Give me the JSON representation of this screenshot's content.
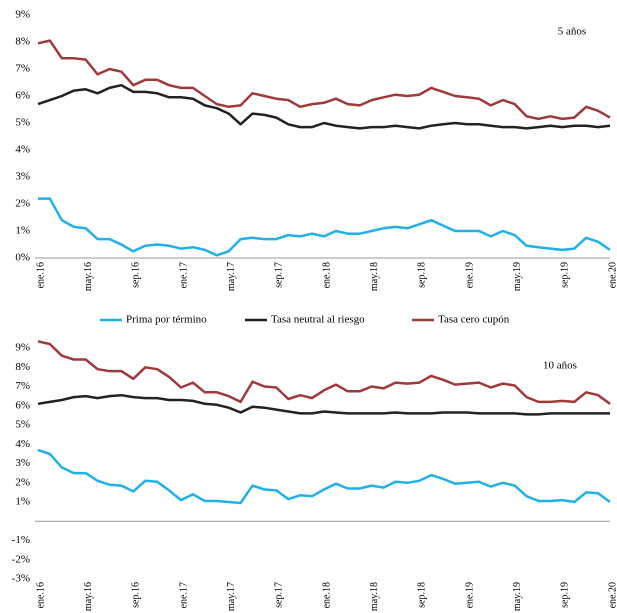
{
  "chart_data": [
    {
      "type": "line",
      "annotation": "5 años",
      "categories": [
        "ene.16",
        null,
        null,
        null,
        "may.16",
        null,
        null,
        null,
        "sep.16",
        null,
        null,
        null,
        "ene.17",
        null,
        null,
        null,
        "may.17",
        null,
        null,
        null,
        "sep.17",
        null,
        null,
        null,
        "ene.18",
        null,
        null,
        null,
        "may.18",
        null,
        null,
        null,
        "sep.18",
        null,
        null,
        null,
        "ene.19",
        null,
        null,
        null,
        "may.19",
        null,
        null,
        null,
        "sep.19",
        null,
        null,
        null,
        "ene.20"
      ],
      "ylim": [
        0,
        9
      ],
      "yticks": [
        {
          "value": 0,
          "label": "0%"
        },
        {
          "value": 1,
          "label": "1%"
        },
        {
          "value": 2,
          "label": "2%"
        },
        {
          "value": 3,
          "label": "3%"
        },
        {
          "value": 4,
          "label": "4%"
        },
        {
          "value": 5,
          "label": "5%"
        },
        {
          "value": 6,
          "label": "6%"
        },
        {
          "value": 7,
          "label": "7%"
        },
        {
          "value": 8,
          "label": "8%"
        },
        {
          "value": 9,
          "label": "9%"
        }
      ],
      "grid": false,
      "series": [
        {
          "name": "Prima por término",
          "color": "#1fb1e8",
          "values": [
            2.2,
            2.2,
            1.4,
            1.15,
            1.1,
            0.7,
            0.7,
            0.5,
            0.25,
            0.45,
            0.5,
            0.45,
            0.35,
            0.4,
            0.3,
            0.1,
            0.25,
            0.7,
            0.75,
            0.7,
            0.7,
            0.85,
            0.8,
            0.9,
            0.8,
            1.0,
            0.9,
            0.9,
            1.0,
            1.1,
            1.15,
            1.1,
            1.25,
            1.4,
            1.2,
            1.0,
            1.0,
            1.0,
            0.8,
            1.0,
            0.85,
            0.45,
            0.4,
            0.35,
            0.3,
            0.35,
            0.75,
            0.6,
            0.3
          ]
        },
        {
          "name": "Tasa neutral al riesgo",
          "color": "#222222",
          "values": [
            5.7,
            5.85,
            6.0,
            6.2,
            6.25,
            6.1,
            6.3,
            6.4,
            6.15,
            6.15,
            6.1,
            5.95,
            5.95,
            5.9,
            5.65,
            5.55,
            5.35,
            4.95,
            5.35,
            5.3,
            5.2,
            4.95,
            4.85,
            4.85,
            5.0,
            4.9,
            4.85,
            4.8,
            4.85,
            4.85,
            4.9,
            4.85,
            4.8,
            4.9,
            4.95,
            5.0,
            4.95,
            4.95,
            4.9,
            4.85,
            4.85,
            4.8,
            4.85,
            4.9,
            4.85,
            4.9,
            4.9,
            4.85,
            4.9
          ]
        },
        {
          "name": "Tasa cero cupón",
          "color": "#a0393b",
          "values": [
            7.95,
            8.05,
            7.4,
            7.4,
            7.35,
            6.8,
            7.0,
            6.9,
            6.4,
            6.6,
            6.6,
            6.4,
            6.3,
            6.3,
            6.0,
            5.7,
            5.6,
            5.65,
            6.1,
            6.0,
            5.9,
            5.85,
            5.6,
            5.7,
            5.75,
            5.9,
            5.7,
            5.65,
            5.85,
            5.95,
            6.05,
            6.0,
            6.05,
            6.3,
            6.15,
            6.0,
            5.95,
            5.9,
            5.65,
            5.85,
            5.7,
            5.25,
            5.15,
            5.25,
            5.15,
            5.2,
            5.6,
            5.45,
            5.2
          ]
        }
      ]
    },
    {
      "type": "line",
      "annotation": "10 años",
      "categories": [
        "ene.16",
        null,
        null,
        null,
        "may.16",
        null,
        null,
        null,
        "sep.16",
        null,
        null,
        null,
        "ene.17",
        null,
        null,
        null,
        "may.17",
        null,
        null,
        null,
        "sep.17",
        null,
        null,
        null,
        "ene.18",
        null,
        null,
        null,
        "may.18",
        null,
        null,
        null,
        "sep.18",
        null,
        null,
        null,
        "ene.19",
        null,
        null,
        null,
        "may.19",
        null,
        null,
        null,
        "sep.19",
        null,
        null,
        null,
        "ene.20"
      ],
      "ylim": [
        -3,
        9
      ],
      "yticks": [
        {
          "value": -3,
          "label": "-3%"
        },
        {
          "value": -2,
          "label": "-2%"
        },
        {
          "value": -1,
          "label": "-1%"
        },
        {
          "value": 1,
          "label": "1%"
        },
        {
          "value": 2,
          "label": "2%"
        },
        {
          "value": 3,
          "label": "3%"
        },
        {
          "value": 4,
          "label": "4%"
        },
        {
          "value": 5,
          "label": "5%"
        },
        {
          "value": 6,
          "label": "6%"
        },
        {
          "value": 7,
          "label": "7%"
        },
        {
          "value": 8,
          "label": "8%"
        },
        {
          "value": 9,
          "label": "9%"
        }
      ],
      "grid": false,
      "series": [
        {
          "color": "#1fb1e8",
          "values": [
            3.7,
            3.5,
            2.8,
            2.5,
            2.5,
            2.1,
            1.9,
            1.85,
            1.55,
            2.1,
            2.05,
            1.6,
            1.1,
            1.4,
            1.05,
            1.05,
            1.0,
            0.95,
            1.85,
            1.65,
            1.6,
            1.15,
            1.35,
            1.3,
            1.65,
            1.95,
            1.7,
            1.7,
            1.85,
            1.75,
            2.05,
            2.0,
            2.1,
            2.4,
            2.2,
            1.95,
            2.0,
            2.05,
            1.8,
            2.0,
            1.85,
            1.3,
            1.05,
            1.05,
            1.1,
            1.0,
            1.5,
            1.45,
            1.0
          ]
        },
        {
          "color": "#222222",
          "values": [
            6.1,
            6.2,
            6.3,
            6.45,
            6.5,
            6.4,
            6.5,
            6.55,
            6.45,
            6.4,
            6.4,
            6.3,
            6.3,
            6.25,
            6.1,
            6.05,
            5.9,
            5.65,
            5.95,
            5.9,
            5.8,
            5.7,
            5.6,
            5.6,
            5.7,
            5.65,
            5.6,
            5.6,
            5.6,
            5.6,
            5.65,
            5.6,
            5.6,
            5.6,
            5.65,
            5.65,
            5.65,
            5.6,
            5.6,
            5.6,
            5.6,
            5.55,
            5.55,
            5.6,
            5.6,
            5.6,
            5.6,
            5.6,
            5.6
          ]
        },
        {
          "color": "#a0393b",
          "values": [
            9.35,
            9.2,
            8.6,
            8.4,
            8.4,
            7.9,
            7.8,
            7.8,
            7.4,
            8.0,
            7.9,
            7.5,
            6.95,
            7.2,
            6.7,
            6.7,
            6.5,
            6.2,
            7.25,
            7.0,
            6.95,
            6.35,
            6.55,
            6.4,
            6.8,
            7.1,
            6.75,
            6.75,
            7.0,
            6.9,
            7.2,
            7.15,
            7.2,
            7.55,
            7.35,
            7.1,
            7.15,
            7.2,
            6.95,
            7.15,
            7.05,
            6.45,
            6.2,
            6.2,
            6.25,
            6.2,
            6.7,
            6.55,
            6.1
          ]
        }
      ]
    }
  ]
}
